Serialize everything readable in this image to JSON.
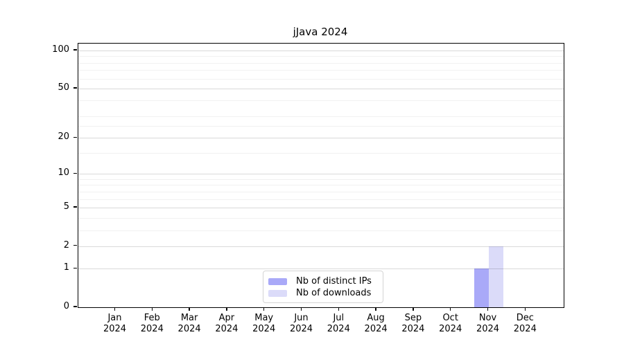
{
  "chart_data": {
    "type": "bar",
    "title": "jJava 2024",
    "categories": [
      "Jan",
      "Feb",
      "Mar",
      "Apr",
      "May",
      "Jun",
      "Jul",
      "Aug",
      "Sep",
      "Oct",
      "Nov",
      "Dec"
    ],
    "year_label": "2024",
    "series": [
      {
        "name": "Nb of distinct IPs",
        "color": "#a9a9f8",
        "values": [
          0,
          0,
          0,
          0,
          0,
          0,
          0,
          0,
          0,
          0,
          1,
          0
        ]
      },
      {
        "name": "Nb of downloads",
        "color": "#dbdbf9",
        "values": [
          0,
          0,
          0,
          0,
          0,
          0,
          0,
          0,
          0,
          0,
          2,
          0
        ]
      }
    ],
    "yticks": [
      0,
      1,
      2,
      5,
      10,
      20,
      50,
      100
    ],
    "minor_yticks": [
      3,
      4,
      6,
      7,
      8,
      9,
      15,
      25,
      30,
      40,
      60,
      70,
      80,
      90
    ],
    "yscale": "symlog",
    "ylim": [
      0,
      113
    ],
    "grid": "on",
    "legend_position": "bottom-center",
    "major_grid_color": "#d9d9d9",
    "minor_grid_color": "#f1f1f1"
  }
}
